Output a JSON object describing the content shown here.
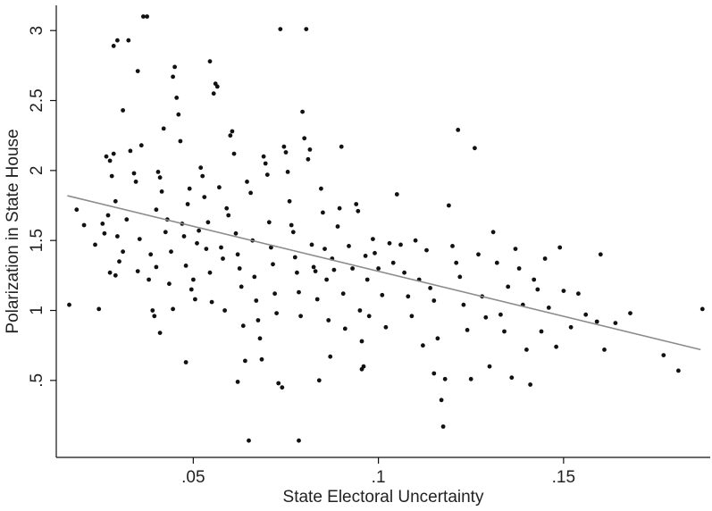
{
  "chart_data": {
    "type": "scatter",
    "xlabel": "State Electoral Uncertainty",
    "ylabel": "Polarization in State House",
    "xlim": [
      0.013,
      0.1896
    ],
    "ylim": [
      -0.05,
      3.18
    ],
    "xticks": [
      0.05,
      0.1,
      0.15
    ],
    "xtick_labels": [
      ".05",
      ".1",
      ".15"
    ],
    "yticks": [
      0.5,
      1,
      1.5,
      2,
      2.5,
      3
    ],
    "ytick_labels": [
      ".5",
      "1",
      "1.5",
      "2",
      "2.5",
      "3"
    ],
    "grid": false,
    "legend": "none",
    "colors": {
      "points": "#111111",
      "fit_line": "#8c8c8c",
      "axes": "#111111"
    },
    "fit_line": {
      "x": [
        0.016,
        0.187
      ],
      "y": [
        1.82,
        0.72
      ]
    },
    "points": [
      [
        0.0165,
        1.04
      ],
      [
        0.0185,
        1.72
      ],
      [
        0.0205,
        1.61
      ],
      [
        0.0235,
        1.47
      ],
      [
        0.0245,
        1.01
      ],
      [
        0.0255,
        1.62
      ],
      [
        0.026,
        1.55
      ],
      [
        0.027,
        1.68
      ],
      [
        0.0265,
        2.1
      ],
      [
        0.0275,
        2.07
      ],
      [
        0.0285,
        2.12
      ],
      [
        0.028,
        1.96
      ],
      [
        0.029,
        1.78
      ],
      [
        0.0295,
        1.53
      ],
      [
        0.03,
        1.35
      ],
      [
        0.0285,
        2.89
      ],
      [
        0.0295,
        2.93
      ],
      [
        0.031,
        2.43
      ],
      [
        0.0325,
        2.93
      ],
      [
        0.034,
        1.98
      ],
      [
        0.0345,
        1.92
      ],
      [
        0.0355,
        1.51
      ],
      [
        0.0365,
        3.1
      ],
      [
        0.0375,
        3.1
      ],
      [
        0.035,
        2.71
      ],
      [
        0.036,
        2.18
      ],
      [
        0.033,
        2.14
      ],
      [
        0.032,
        1.65
      ],
      [
        0.031,
        1.42
      ],
      [
        0.029,
        1.25
      ],
      [
        0.0275,
        1.27
      ],
      [
        0.035,
        1.28
      ],
      [
        0.038,
        1.22
      ],
      [
        0.039,
        1.0
      ],
      [
        0.0395,
        0.96
      ],
      [
        0.0385,
        1.4
      ],
      [
        0.04,
        1.31
      ],
      [
        0.0405,
        1.99
      ],
      [
        0.041,
        1.95
      ],
      [
        0.0415,
        1.85
      ],
      [
        0.042,
        2.3
      ],
      [
        0.04,
        1.72
      ],
      [
        0.041,
        0.84
      ],
      [
        0.0425,
        1.56
      ],
      [
        0.043,
        1.65
      ],
      [
        0.0435,
        1.19
      ],
      [
        0.044,
        1.42
      ],
      [
        0.0445,
        1.01
      ],
      [
        0.0445,
        2.67
      ],
      [
        0.045,
        2.74
      ],
      [
        0.0455,
        2.52
      ],
      [
        0.046,
        2.4
      ],
      [
        0.0465,
        2.21
      ],
      [
        0.047,
        1.62
      ],
      [
        0.0475,
        1.53
      ],
      [
        0.048,
        1.32
      ],
      [
        0.0485,
        1.76
      ],
      [
        0.049,
        1.87
      ],
      [
        0.0495,
        1.15
      ],
      [
        0.048,
        0.63
      ],
      [
        0.05,
        1.22
      ],
      [
        0.0505,
        1.08
      ],
      [
        0.051,
        1.48
      ],
      [
        0.0515,
        1.57
      ],
      [
        0.052,
        2.02
      ],
      [
        0.0525,
        1.96
      ],
      [
        0.053,
        1.81
      ],
      [
        0.0535,
        1.44
      ],
      [
        0.054,
        1.63
      ],
      [
        0.0545,
        1.27
      ],
      [
        0.055,
        1.06
      ],
      [
        0.0555,
        2.55
      ],
      [
        0.0545,
        2.78
      ],
      [
        0.056,
        2.62
      ],
      [
        0.0565,
        2.6
      ],
      [
        0.057,
        1.88
      ],
      [
        0.0575,
        1.45
      ],
      [
        0.058,
        1.37
      ],
      [
        0.0585,
        1.0
      ],
      [
        0.059,
        1.73
      ],
      [
        0.0595,
        1.68
      ],
      [
        0.06,
        2.25
      ],
      [
        0.0605,
        2.28
      ],
      [
        0.061,
        2.12
      ],
      [
        0.0615,
        1.55
      ],
      [
        0.062,
        1.4
      ],
      [
        0.0625,
        1.3
      ],
      [
        0.063,
        1.17
      ],
      [
        0.0635,
        0.89
      ],
      [
        0.064,
        0.64
      ],
      [
        0.062,
        0.49
      ],
      [
        0.0645,
        1.92
      ],
      [
        0.0655,
        1.84
      ],
      [
        0.066,
        1.5
      ],
      [
        0.0665,
        1.24
      ],
      [
        0.067,
        1.07
      ],
      [
        0.0675,
        0.93
      ],
      [
        0.068,
        0.8
      ],
      [
        0.0685,
        0.65
      ],
      [
        0.065,
        0.07
      ],
      [
        0.069,
        2.1
      ],
      [
        0.0695,
        2.05
      ],
      [
        0.07,
        1.97
      ],
      [
        0.0705,
        1.63
      ],
      [
        0.071,
        1.45
      ],
      [
        0.0715,
        1.33
      ],
      [
        0.072,
        1.12
      ],
      [
        0.0725,
        0.98
      ],
      [
        0.073,
        0.48
      ],
      [
        0.074,
        0.45
      ],
      [
        0.0735,
        3.01
      ],
      [
        0.0745,
        2.17
      ],
      [
        0.075,
        2.13
      ],
      [
        0.0755,
        1.99
      ],
      [
        0.076,
        1.78
      ],
      [
        0.0765,
        1.61
      ],
      [
        0.077,
        1.56
      ],
      [
        0.0775,
        1.38
      ],
      [
        0.078,
        1.27
      ],
      [
        0.0785,
        1.13
      ],
      [
        0.079,
        0.96
      ],
      [
        0.0785,
        0.07
      ],
      [
        0.0795,
        2.42
      ],
      [
        0.08,
        2.23
      ],
      [
        0.0805,
        3.01
      ],
      [
        0.081,
        2.08
      ],
      [
        0.0815,
        2.15
      ],
      [
        0.082,
        1.47
      ],
      [
        0.0825,
        1.31
      ],
      [
        0.083,
        1.28
      ],
      [
        0.0835,
        1.08
      ],
      [
        0.084,
        0.5
      ],
      [
        0.0845,
        1.87
      ],
      [
        0.085,
        1.7
      ],
      [
        0.0855,
        1.44
      ],
      [
        0.086,
        1.22
      ],
      [
        0.0865,
        0.93
      ],
      [
        0.087,
        0.67
      ],
      [
        0.0875,
        1.37
      ],
      [
        0.088,
        1.29
      ],
      [
        0.089,
        1.6
      ],
      [
        0.0895,
        1.73
      ],
      [
        0.09,
        2.17
      ],
      [
        0.0905,
        1.12
      ],
      [
        0.091,
        0.87
      ],
      [
        0.092,
        1.46
      ],
      [
        0.093,
        1.3
      ],
      [
        0.094,
        1.76
      ],
      [
        0.0945,
        1.71
      ],
      [
        0.095,
        1.0
      ],
      [
        0.0955,
        0.78
      ],
      [
        0.096,
        0.6
      ],
      [
        0.0955,
        0.58
      ],
      [
        0.0965,
        1.39
      ],
      [
        0.097,
        1.22
      ],
      [
        0.0975,
        0.96
      ],
      [
        0.0985,
        1.51
      ],
      [
        0.099,
        1.41
      ],
      [
        0.1,
        1.3
      ],
      [
        0.101,
        1.11
      ],
      [
        0.102,
        0.88
      ],
      [
        0.103,
        1.48
      ],
      [
        0.104,
        1.34
      ],
      [
        0.105,
        1.83
      ],
      [
        0.106,
        1.47
      ],
      [
        0.107,
        1.27
      ],
      [
        0.108,
        1.1
      ],
      [
        0.109,
        0.96
      ],
      [
        0.11,
        1.5
      ],
      [
        0.111,
        1.22
      ],
      [
        0.112,
        0.75
      ],
      [
        0.113,
        1.43
      ],
      [
        0.114,
        1.16
      ],
      [
        0.115,
        1.07
      ],
      [
        0.115,
        0.55
      ],
      [
        0.116,
        0.8
      ],
      [
        0.117,
        0.36
      ],
      [
        0.1175,
        0.17
      ],
      [
        0.118,
        0.51
      ],
      [
        0.119,
        1.75
      ],
      [
        0.12,
        1.46
      ],
      [
        0.121,
        1.34
      ],
      [
        0.1215,
        2.29
      ],
      [
        0.122,
        1.24
      ],
      [
        0.123,
        1.04
      ],
      [
        0.124,
        0.86
      ],
      [
        0.125,
        0.51
      ],
      [
        0.126,
        2.16
      ],
      [
        0.127,
        1.4
      ],
      [
        0.128,
        1.1
      ],
      [
        0.129,
        0.95
      ],
      [
        0.13,
        0.6
      ],
      [
        0.131,
        1.56
      ],
      [
        0.132,
        1.34
      ],
      [
        0.133,
        0.97
      ],
      [
        0.134,
        0.85
      ],
      [
        0.135,
        1.17
      ],
      [
        0.136,
        0.52
      ],
      [
        0.137,
        1.44
      ],
      [
        0.138,
        1.3
      ],
      [
        0.139,
        1.04
      ],
      [
        0.14,
        0.72
      ],
      [
        0.141,
        0.47
      ],
      [
        0.142,
        1.22
      ],
      [
        0.143,
        1.15
      ],
      [
        0.144,
        0.85
      ],
      [
        0.145,
        1.37
      ],
      [
        0.146,
        1.02
      ],
      [
        0.148,
        0.74
      ],
      [
        0.149,
        1.45
      ],
      [
        0.15,
        1.14
      ],
      [
        0.152,
        0.88
      ],
      [
        0.154,
        1.12
      ],
      [
        0.156,
        0.97
      ],
      [
        0.159,
        0.92
      ],
      [
        0.16,
        1.4
      ],
      [
        0.161,
        0.72
      ],
      [
        0.164,
        0.91
      ],
      [
        0.168,
        0.98
      ],
      [
        0.177,
        0.68
      ],
      [
        0.181,
        0.57
      ],
      [
        0.1875,
        1.01
      ]
    ]
  }
}
